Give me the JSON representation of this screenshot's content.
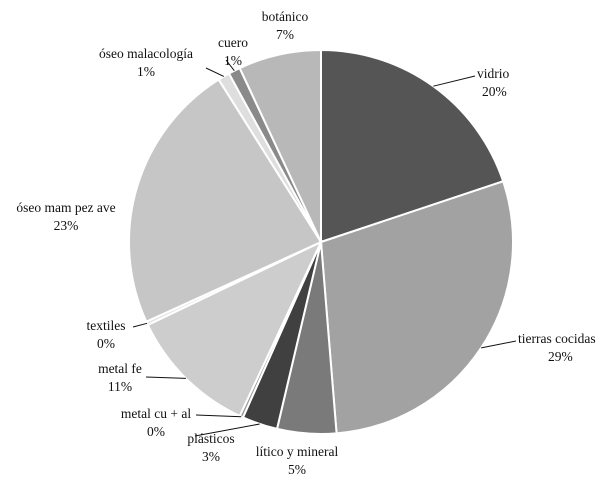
{
  "chart_data": {
    "type": "pie",
    "title": "",
    "slices": [
      {
        "label": "vidrio",
        "value": 20,
        "value_label": "20%",
        "color": "#555555"
      },
      {
        "label": "tierras cocidas",
        "value": 29,
        "value_label": "29%",
        "color": "#a2a2a2"
      },
      {
        "label": "lítico y mineral",
        "value": 5,
        "value_label": "5%",
        "color": "#7a7a7a"
      },
      {
        "label": "plásticos",
        "value": 3,
        "value_label": "3%",
        "color": "#404040"
      },
      {
        "label": "metal cu + al",
        "value": 0.3,
        "value_label": "0%",
        "color": "#9a9a9a"
      },
      {
        "label": "metal fe",
        "value": 11,
        "value_label": "11%",
        "color": "#cdcdcd"
      },
      {
        "label": "textiles",
        "value": 0.3,
        "value_label": "0%",
        "color": "#e2e2e2"
      },
      {
        "label": "óseo mam pez ave",
        "value": 23,
        "value_label": "23%",
        "color": "#c6c6c6"
      },
      {
        "label": "óseo malacología",
        "value": 1,
        "value_label": "1%",
        "color": "#dedede"
      },
      {
        "label": "cuero",
        "value": 1,
        "value_label": "1%",
        "color": "#8a8a8a"
      },
      {
        "label": "botánico",
        "value": 7,
        "value_label": "7%",
        "color": "#b8b8b8"
      }
    ]
  }
}
